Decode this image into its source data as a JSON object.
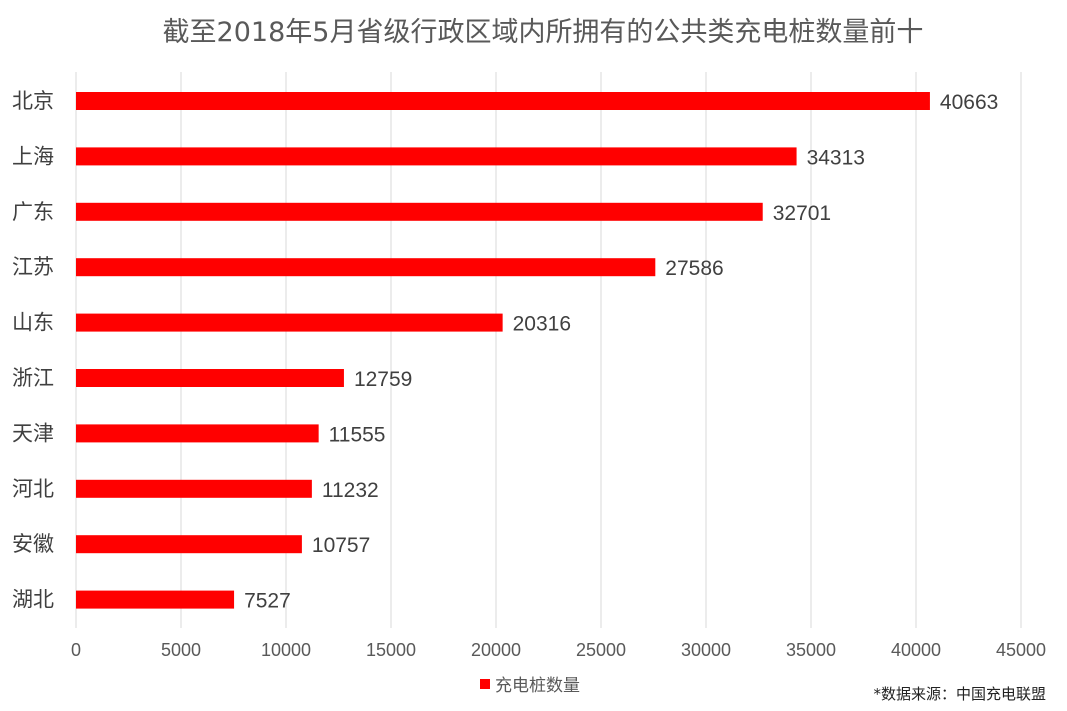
{
  "chart_data": {
    "type": "bar",
    "orientation": "horizontal",
    "title": "截至2018年5月省级行政区域内所拥有的公共类充电桩数量前十",
    "categories": [
      "北京",
      "上海",
      "广东",
      "江苏",
      "山东",
      "浙江",
      "天津",
      "河北",
      "安徽",
      "湖北"
    ],
    "series": [
      {
        "name": "充电桩数量",
        "values": [
          40663,
          34313,
          32701,
          27586,
          20316,
          12759,
          11555,
          11232,
          10757,
          7527
        ]
      }
    ],
    "xlim": [
      0,
      45000
    ],
    "xticks": [
      "0",
      "5000",
      "10000",
      "15000",
      "20000",
      "25000",
      "30000",
      "35000",
      "40000",
      "45000"
    ],
    "grid": "vertical",
    "legend": "bottom",
    "data_labels": true,
    "colors": {
      "bar": "#ff0000",
      "grid": "#d9d9d9",
      "text": "#404040"
    }
  },
  "source_note": "*数据来源：中国充电联盟"
}
